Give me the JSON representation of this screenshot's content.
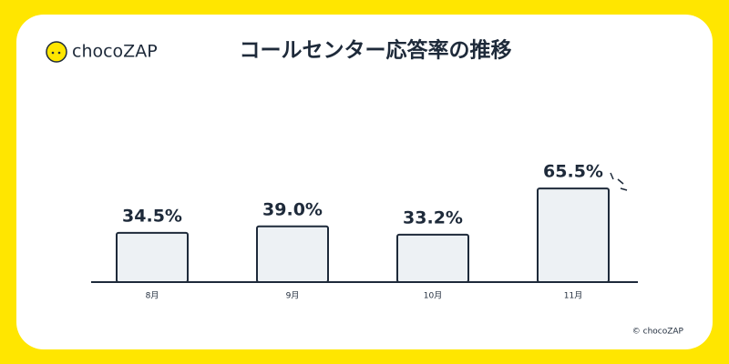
{
  "chart_data": {
    "type": "bar",
    "title": "コールセンター応答率の推移",
    "brand": "chocoZAP",
    "copyright": "© chocoZAP",
    "categories": [
      "8月",
      "9月",
      "10月",
      "11月"
    ],
    "values": [
      34.5,
      39.0,
      33.2,
      65.5
    ],
    "value_labels": [
      "34.5%",
      "39.0%",
      "33.2%",
      "65.5%"
    ],
    "color": "#edf1f4",
    "ylim": [
      0,
      100
    ]
  }
}
